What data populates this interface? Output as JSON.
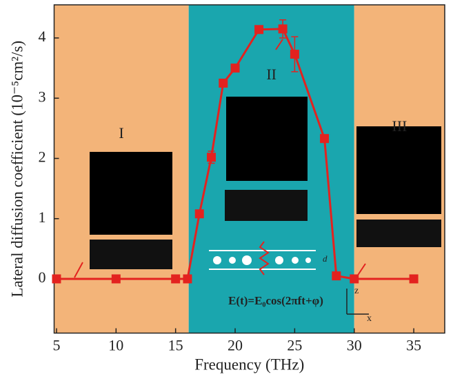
{
  "chart_data": {
    "type": "line",
    "x_label": "Frequency (THz)",
    "y_label": "Lateral diffusion coefficient (10⁻⁵cm²/s)",
    "x": [
      5,
      10,
      15,
      16,
      17,
      18,
      19,
      20,
      22,
      24,
      25,
      27.5,
      28.5,
      30,
      35
    ],
    "series": [
      {
        "color": "#e3221f",
        "values": [
          0,
          0,
          0,
          0,
          1.08,
          2.02,
          3.25,
          3.5,
          4.14,
          4.15,
          3.73,
          2.33,
          0.05,
          0,
          0
        ],
        "errors": [
          null,
          null,
          null,
          null,
          null,
          0.1,
          null,
          null,
          null,
          0.15,
          0.29,
          null,
          null,
          null,
          null
        ]
      }
    ],
    "regions": [
      {
        "label": "I",
        "range": [
          4.8,
          16.1
        ],
        "color": "#f3b479"
      },
      {
        "label": "II",
        "range": [
          16.1,
          30
        ],
        "color": "#1aa6ae"
      },
      {
        "label": "III",
        "range": [
          30,
          37.6
        ],
        "color": "#f3b479"
      }
    ],
    "annotations": [
      "E(t)=E₀cos(2πft+φ)",
      "d",
      "z",
      "x"
    ],
    "xlim": [
      4.8,
      37.6
    ],
    "xticks": [
      5,
      10,
      15,
      20,
      25,
      30,
      35
    ],
    "ylim": [
      -0.9,
      4.55
    ],
    "yticks": [
      0,
      1,
      2,
      3,
      4
    ]
  }
}
